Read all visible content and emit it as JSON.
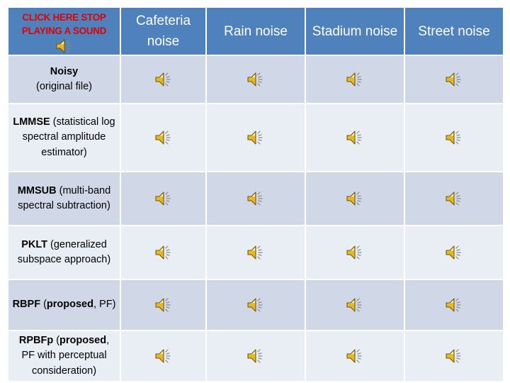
{
  "stop_label": "CLICK HERE STOP PLAYING A SOUND",
  "columns": [
    "Cafeteria noise",
    "Rain noise",
    "Stadium noise",
    "Street noise"
  ],
  "rows": [
    {
      "b1": "Noisy",
      "t1": "(original file)",
      "b2": "",
      "t2": ""
    },
    {
      "b1": "LMMSE",
      "t1": " (statistical log spectral amplitude estimator)",
      "b2": "",
      "t2": ""
    },
    {
      "b1": "MMSUB",
      "t1": " (multi-band spectral subtraction)",
      "b2": "",
      "t2": ""
    },
    {
      "b1": "PKLT",
      "t1": " (generalized subspace approach)",
      "b2": "",
      "t2": ""
    },
    {
      "b1": "RBPF",
      "t1": " (",
      "b2": "proposed",
      "t2": ", PF)"
    },
    {
      "b1": "RPBFp",
      "t1": " (",
      "b2": "proposed",
      "t2": ", PF with perceptual consideration)"
    }
  ],
  "icons": {
    "audio": "speaker-icon"
  },
  "colors": {
    "header": "#4f81bd",
    "row_odd": "#d0d8e8",
    "row_even": "#e9edf4",
    "stop_text": "#e00000"
  }
}
